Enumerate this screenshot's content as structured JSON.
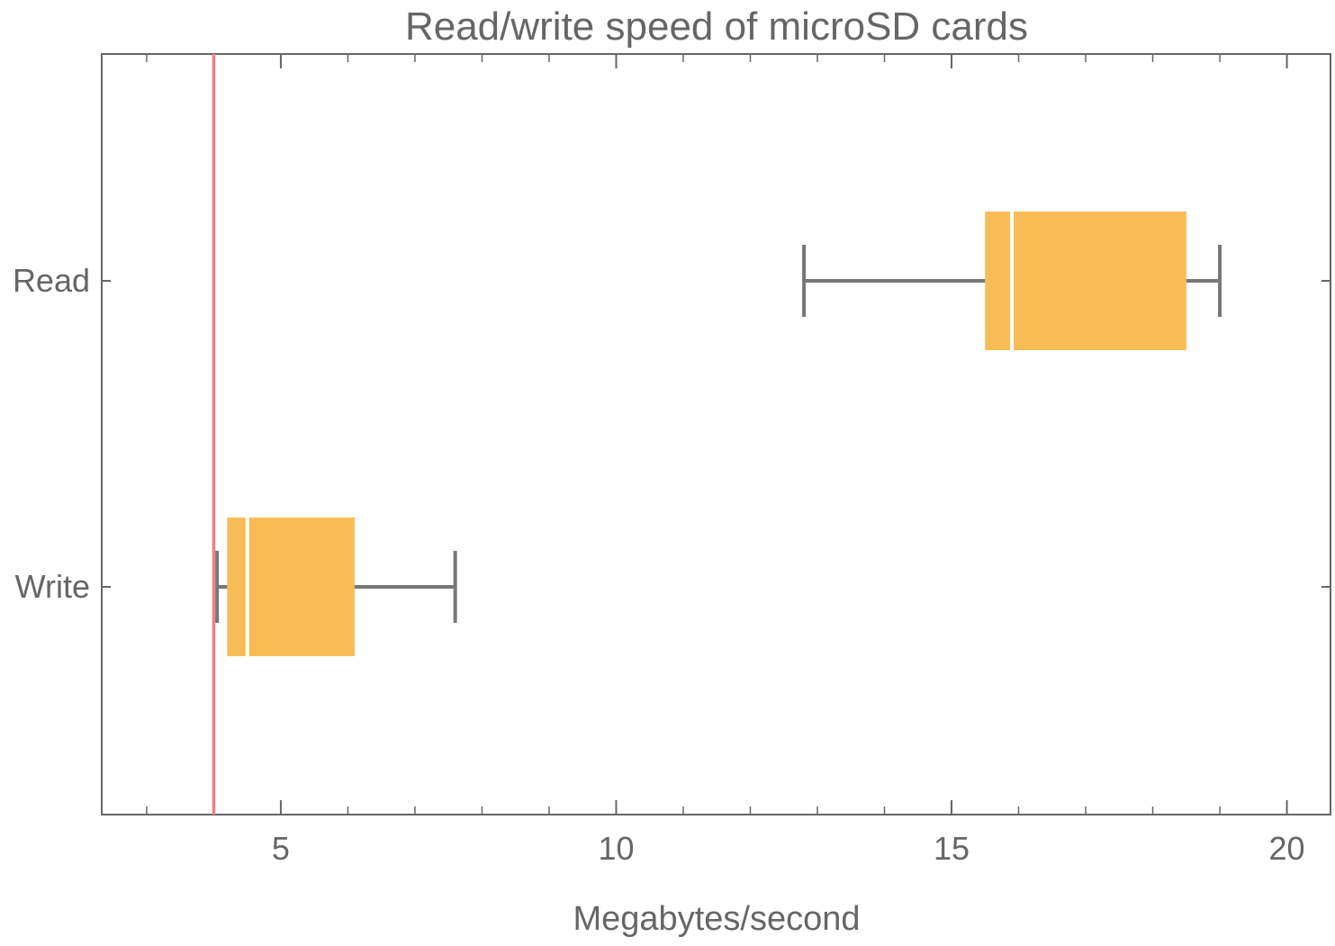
{
  "chart_data": {
    "type": "box",
    "orientation": "horizontal",
    "title": "Read/write speed of microSD cards",
    "xlabel": "Megabytes/second",
    "ylabel": "",
    "xlim": [
      2.33,
      20.65
    ],
    "x_ticks": [
      5,
      10,
      15,
      20
    ],
    "x_minor_step": 1,
    "categories": [
      "Read",
      "Write"
    ],
    "boxes": [
      {
        "category": "Read",
        "whisker_low": 12.8,
        "q1": 15.5,
        "median": 15.9,
        "q3": 18.5,
        "whisker_high": 19.0
      },
      {
        "category": "Write",
        "whisker_low": 4.05,
        "q1": 4.2,
        "median": 4.5,
        "q3": 6.1,
        "whisker_high": 7.6
      }
    ],
    "reference_line": {
      "x": 4.0,
      "orientation": "vertical",
      "color": "#f08080"
    },
    "box_color": "#f9bb55",
    "median_color": "#ffffff",
    "line_color": "#777777",
    "frame_color": "#666666",
    "grid": false,
    "legend": "none"
  }
}
